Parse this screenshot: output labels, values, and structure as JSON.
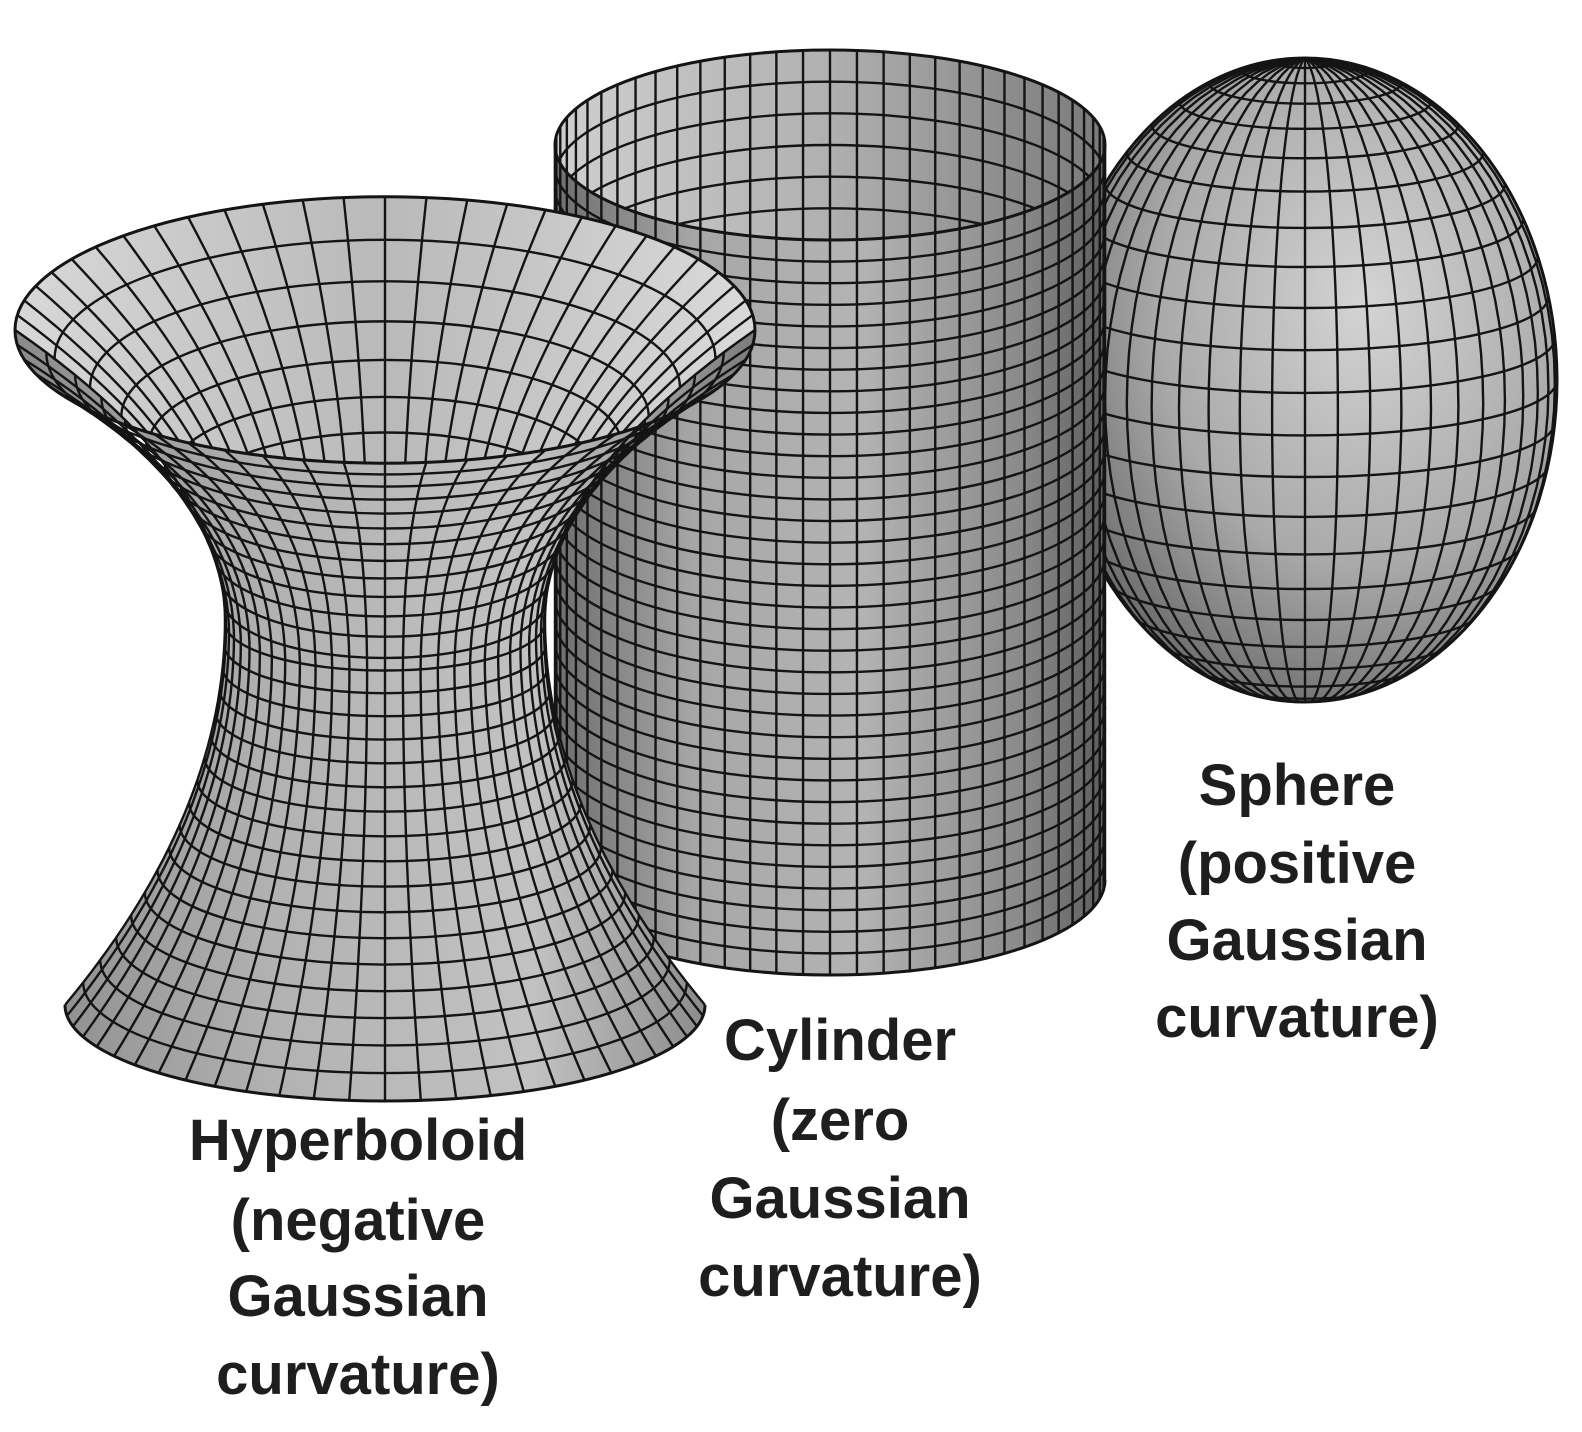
{
  "figure": {
    "surfaces": [
      {
        "id": "hyperboloid",
        "label_lines": [
          "Hyperboloid",
          "(negative",
          "Gaussian",
          "curvature)"
        ]
      },
      {
        "id": "cylinder",
        "label_lines": [
          "Cylinder",
          "(zero",
          "Gaussian",
          "curvature)"
        ]
      },
      {
        "id": "sphere",
        "label_lines": [
          "Sphere",
          "(positive",
          "Gaussian",
          "curvature)"
        ]
      }
    ],
    "colors": {
      "background": "#ffffff",
      "mesh_line": "#141414",
      "surface_light": "#dcdcdc",
      "surface_mid": "#a8a8a8",
      "surface_dark": "#5a5a5a",
      "label_text": "#1e1e1e"
    }
  }
}
